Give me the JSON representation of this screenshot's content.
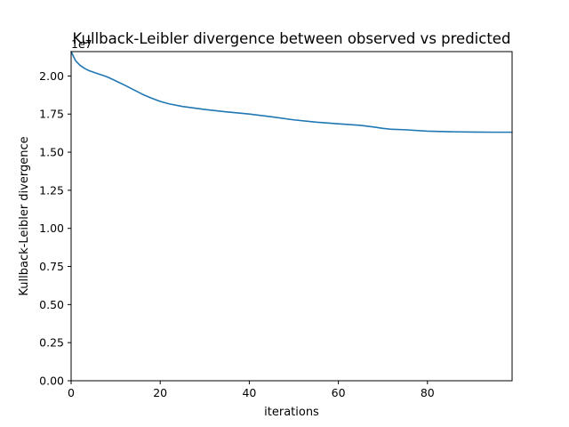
{
  "chart_data": {
    "type": "line",
    "title": "Kullback-Leibler divergence between observed vs predicted",
    "xlabel": "iterations",
    "ylabel": "Kullback-Leibler divergence",
    "offset_label": "1e7",
    "xlim": [
      0,
      99
    ],
    "ylim": [
      0,
      21600000
    ],
    "grid": false,
    "x_ticks": [
      0,
      20,
      40,
      60,
      80
    ],
    "x_tick_labels": [
      "0",
      "20",
      "40",
      "60",
      "80"
    ],
    "y_ticks": [
      0,
      2500000,
      5000000,
      7500000,
      10000000,
      12500000,
      15000000,
      17500000,
      20000000
    ],
    "y_tick_labels": [
      "0.00",
      "0.25",
      "0.50",
      "0.75",
      "1.00",
      "1.25",
      "1.50",
      "1.75",
      "2.00"
    ],
    "series": [
      {
        "color": "#1f77b4",
        "x": [
          0,
          1,
          2,
          3,
          4,
          5,
          6,
          7,
          8,
          9,
          10,
          12,
          14,
          16,
          18,
          20,
          22,
          25,
          30,
          35,
          40,
          45,
          50,
          55,
          60,
          65,
          68,
          70,
          72,
          75,
          80,
          85,
          90,
          95,
          99
        ],
        "y": [
          21600000,
          21000000,
          20700000,
          20500000,
          20350000,
          20250000,
          20150000,
          20050000,
          19950000,
          19820000,
          19680000,
          19400000,
          19100000,
          18800000,
          18550000,
          18330000,
          18170000,
          18000000,
          17800000,
          17640000,
          17500000,
          17320000,
          17120000,
          16970000,
          16860000,
          16760000,
          16650000,
          16560000,
          16500000,
          16470000,
          16380000,
          16340000,
          16320000,
          16310000,
          16310000
        ]
      }
    ]
  }
}
